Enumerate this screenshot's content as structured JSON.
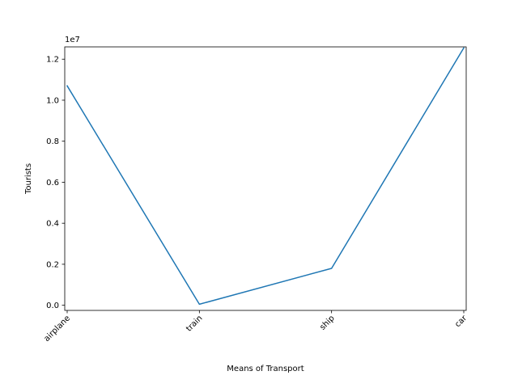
{
  "chart_data": {
    "type": "line",
    "title": "",
    "xlabel": "Means of Transport",
    "ylabel": "Tourists",
    "y_offset_label": "1e7",
    "categories": [
      "airplane",
      "train",
      "ship",
      "car"
    ],
    "series": [
      {
        "values": [
          10700000,
          50000,
          1800000,
          12550000
        ]
      }
    ],
    "ylim": [
      -250000,
      12600000
    ],
    "yticks": [
      0,
      2000000,
      4000000,
      6000000,
      8000000,
      10000000,
      12000000
    ],
    "ytick_labels": [
      "0.0",
      "0.2",
      "0.4",
      "0.6",
      "0.8",
      "1.0",
      "1.2"
    ],
    "line_color": "#1f77b4",
    "grid": false,
    "legend": "none"
  }
}
